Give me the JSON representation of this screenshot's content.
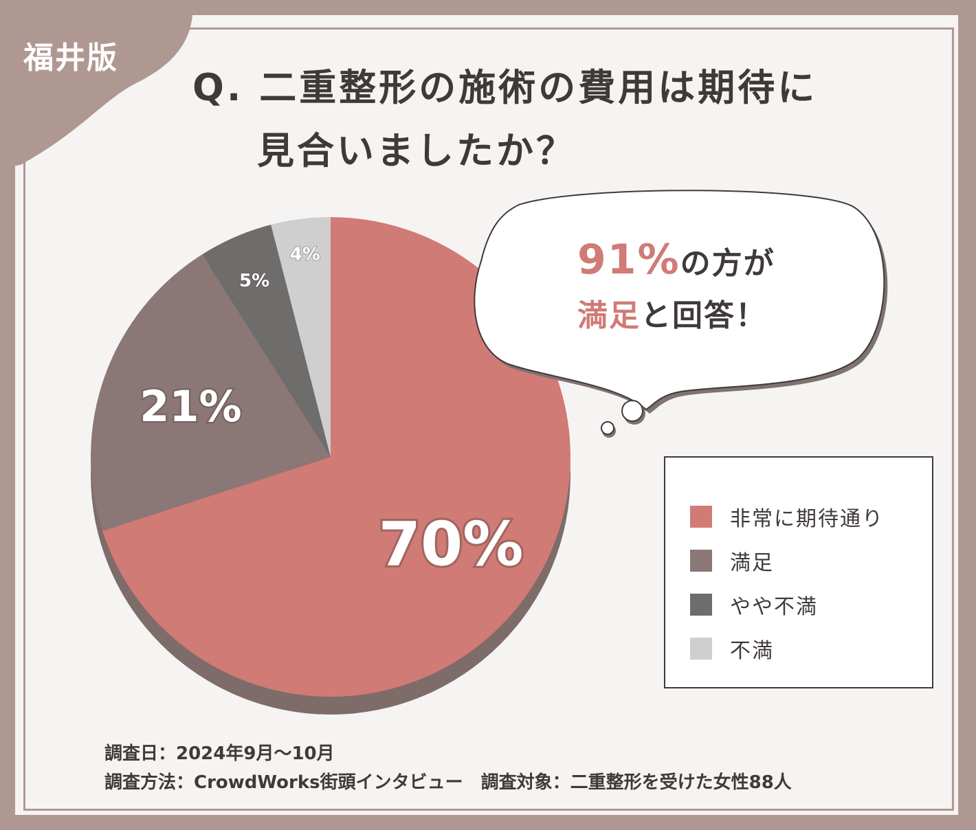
{
  "region_label": "福井版",
  "title": {
    "line1": "Q. 二重整形の施術の費用は期待に",
    "line2": "見合いましたか？"
  },
  "bubble": {
    "percent": "91%",
    "line1_rest": "の方が",
    "accent_word": "満足",
    "line2_rest": "と回答！"
  },
  "colors": {
    "background": "#b09892",
    "accent": "#d07b76",
    "text": "#3f3a39"
  },
  "chart_data": {
    "type": "pie",
    "series": [
      {
        "name": "非常に期待通り",
        "value": 70,
        "label": "70%",
        "color": "#d07b76"
      },
      {
        "name": "満足",
        "value": 21,
        "label": "21%",
        "color": "#8b7775"
      },
      {
        "name": "やや不満",
        "value": 5,
        "label": "5%",
        "color": "#6f6c6c"
      },
      {
        "name": "不満",
        "value": 4,
        "label": "4%",
        "color": "#cfcfcf"
      }
    ],
    "legend_placement": "right"
  },
  "footer": {
    "line1": "調査日：2024年9月～10月",
    "line2": "調査方法：CrowdWorks街頭インタビュー　調査対象：二重整形を受けた女性88人"
  }
}
